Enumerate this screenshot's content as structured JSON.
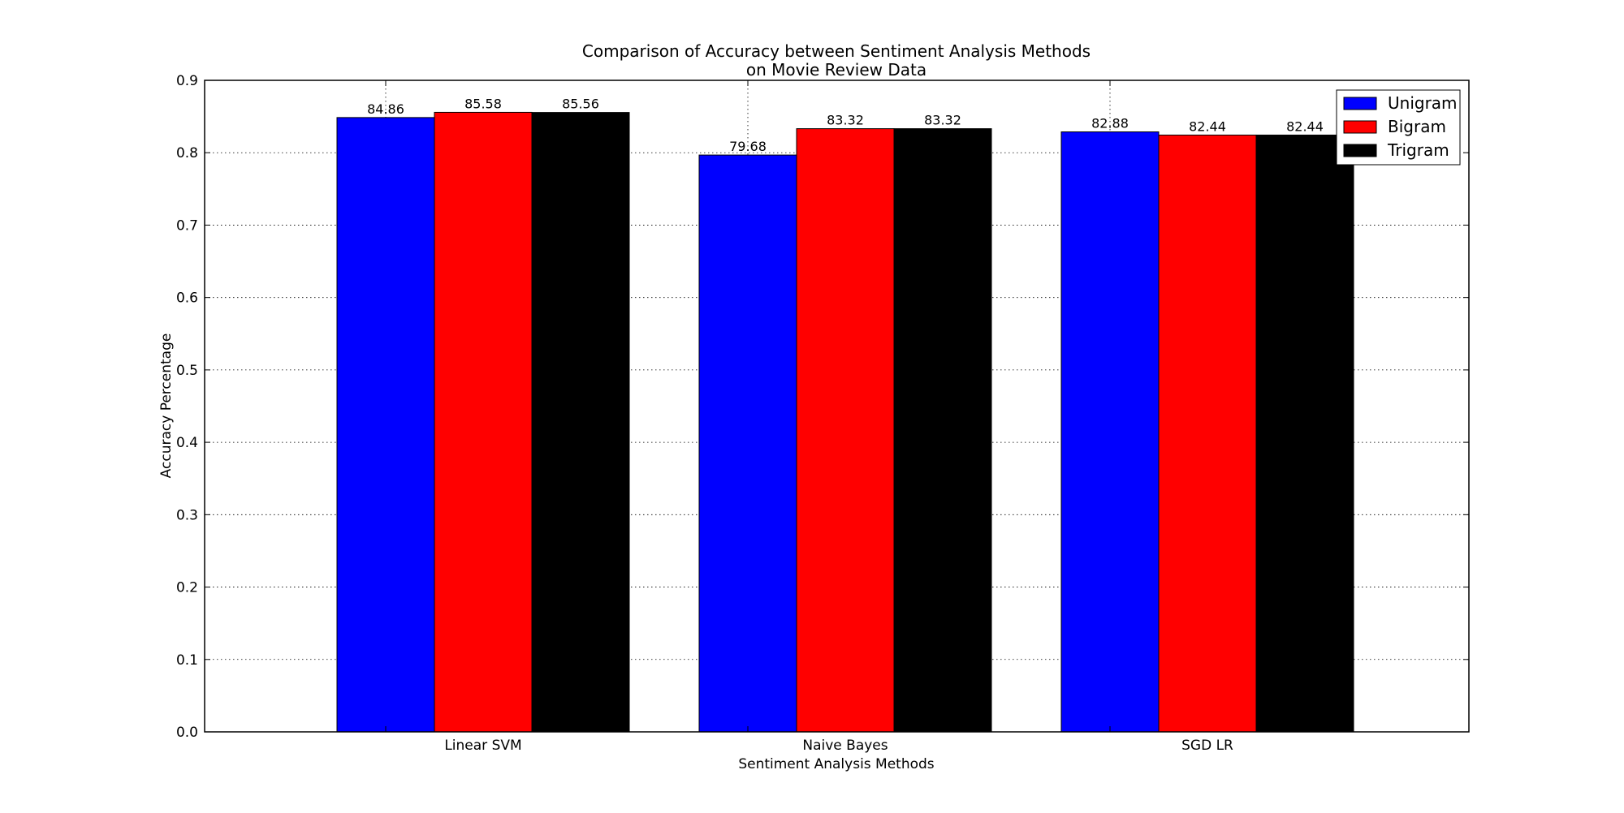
{
  "chart_data": {
    "type": "bar",
    "title": "Comparison of Accuracy between Sentiment Analysis Methods",
    "subtitle": "on Movie Review Data",
    "xlabel": "Sentiment Analysis Methods",
    "ylabel": "Accuracy Percentage",
    "categories": [
      "Linear SVM",
      "Naive Bayes",
      "SGD LR"
    ],
    "series": [
      {
        "name": "Unigram",
        "color": "#0000ff",
        "values": [
          0.8486,
          0.7968,
          0.8288
        ],
        "labels": [
          "84.86",
          "79.68",
          "82.88"
        ]
      },
      {
        "name": "Bigram",
        "color": "#ff0000",
        "values": [
          0.8558,
          0.8332,
          0.8244
        ],
        "labels": [
          "85.58",
          "83.32",
          "82.44"
        ]
      },
      {
        "name": "Trigram",
        "color": "#000000",
        "values": [
          0.8556,
          0.8332,
          0.8244
        ],
        "labels": [
          "85.56",
          "83.32",
          "82.44"
        ]
      }
    ],
    "ylim": [
      0.0,
      0.9
    ],
    "yticks": [
      "0.0",
      "0.1",
      "0.2",
      "0.3",
      "0.4",
      "0.5",
      "0.6",
      "0.7",
      "0.8",
      "0.9"
    ],
    "grid": true,
    "legend_position": "top-right"
  }
}
